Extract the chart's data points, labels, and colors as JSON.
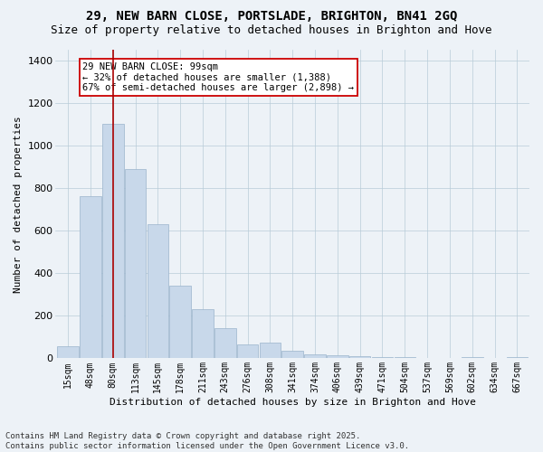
{
  "title": "29, NEW BARN CLOSE, PORTSLADE, BRIGHTON, BN41 2GQ",
  "subtitle": "Size of property relative to detached houses in Brighton and Hove",
  "xlabel": "Distribution of detached houses by size in Brighton and Hove",
  "ylabel": "Number of detached properties",
  "categories": [
    "15sqm",
    "48sqm",
    "80sqm",
    "113sqm",
    "145sqm",
    "178sqm",
    "211sqm",
    "243sqm",
    "276sqm",
    "308sqm",
    "341sqm",
    "374sqm",
    "406sqm",
    "439sqm",
    "471sqm",
    "504sqm",
    "537sqm",
    "569sqm",
    "602sqm",
    "634sqm",
    "667sqm"
  ],
  "bar_heights": [
    55,
    760,
    1100,
    890,
    630,
    340,
    230,
    140,
    65,
    75,
    35,
    20,
    15,
    10,
    5,
    8,
    2,
    2,
    8,
    2,
    5
  ],
  "bar_color": "#c8d8ea",
  "bar_edge_color": "#9ab4cc",
  "vline_x": 2.0,
  "vline_color": "#aa0000",
  "annotation_text": "29 NEW BARN CLOSE: 99sqm\n← 32% of detached houses are smaller (1,388)\n67% of semi-detached houses are larger (2,898) →",
  "annotation_box_color": "#ffffff",
  "annotation_box_edge": "#cc0000",
  "ylim_max": 1450,
  "yticks": [
    0,
    200,
    400,
    600,
    800,
    1000,
    1200,
    1400
  ],
  "footnote_line1": "Contains HM Land Registry data © Crown copyright and database right 2025.",
  "footnote_line2": "Contains public sector information licensed under the Open Government Licence v3.0.",
  "bg_color": "#edf2f7",
  "grid_color": "#b8ccd8",
  "title_fontsize": 10,
  "subtitle_fontsize": 9,
  "ylabel_fontsize": 8,
  "xlabel_fontsize": 8,
  "tick_fontsize": 8,
  "xtick_fontsize": 7,
  "annot_fontsize": 7.5,
  "footnote_fontsize": 6.5
}
